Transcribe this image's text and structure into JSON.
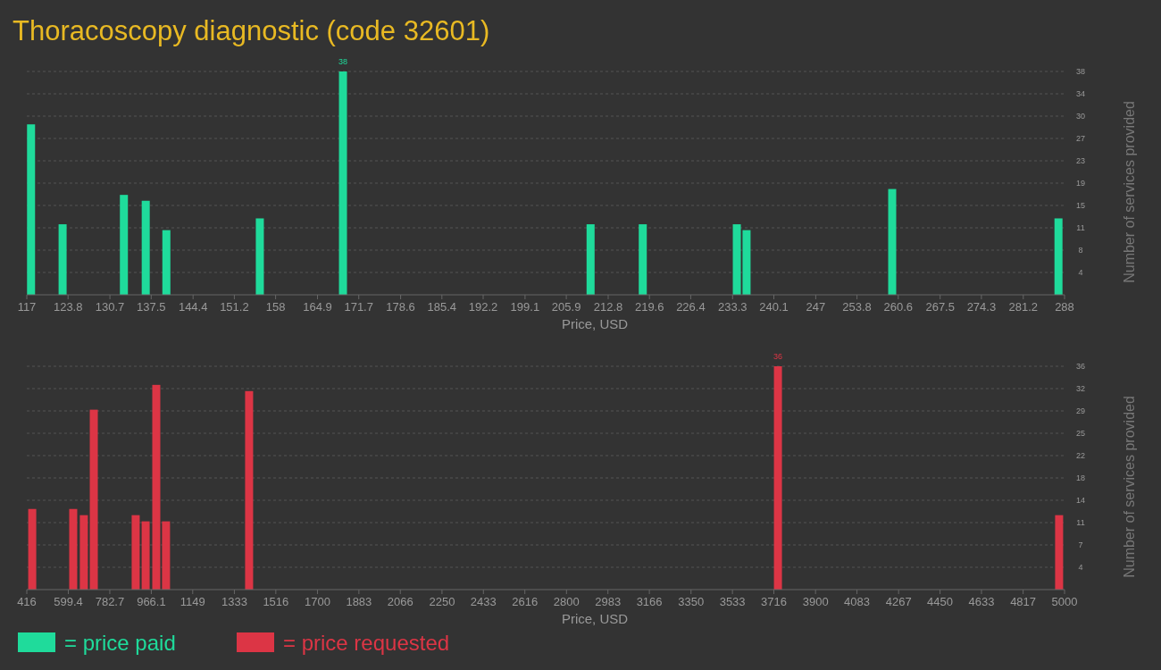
{
  "chart_data": [
    {
      "type": "bar",
      "title": "Thoracoscopy diagnostic (code 32601)",
      "xlabel": "Price, USD",
      "ylabel": "Number of services provided",
      "legend": "bottom left",
      "grid": "y",
      "xlim": [
        117,
        288
      ],
      "xticks": [
        117,
        123.8,
        130.7,
        137.5,
        144.4,
        151.2,
        158,
        164.9,
        171.7,
        178.6,
        185.4,
        192.2,
        199.1,
        205.9,
        212.8,
        219.6,
        226.4,
        233.3,
        240.1,
        247,
        253.8,
        260.6,
        267.5,
        274.3,
        281.2,
        288
      ],
      "ylim": [
        0,
        38
      ],
      "yticks": [
        {
          "value": 3.8,
          "label": "4"
        },
        {
          "value": 7.6,
          "label": "8"
        },
        {
          "value": 11.4,
          "label": "11"
        },
        {
          "value": 15.2,
          "label": "15"
        },
        {
          "value": 19,
          "label": "19"
        },
        {
          "value": 22.8,
          "label": "23"
        },
        {
          "value": 26.6,
          "label": "27"
        },
        {
          "value": 30.4,
          "label": "30"
        },
        {
          "value": 34.2,
          "label": "34"
        },
        {
          "value": 38,
          "label": "38"
        }
      ],
      "series": [
        {
          "name": "= price paid",
          "color": "#1fdb9b",
          "x": [
            117.7,
            122.9,
            133.0,
            136.6,
            140.0,
            155.4,
            169.1,
            209.9,
            218.5,
            234.0,
            235.6,
            259.6,
            287.0
          ],
          "values": [
            29,
            12,
            17,
            16,
            11,
            13,
            38,
            12,
            12,
            12,
            11,
            18,
            13
          ],
          "value_labels": [
            null,
            null,
            null,
            null,
            null,
            null,
            "38",
            null,
            null,
            null,
            null,
            null,
            null
          ]
        }
      ]
    },
    {
      "type": "bar",
      "xlabel": "Price, USD",
      "ylabel": "Number of services provided",
      "legend": "bottom left",
      "grid": "y",
      "xlim": [
        416,
        5000
      ],
      "xticks": [
        416,
        599.4,
        782.7,
        966.1,
        1149,
        1333,
        1516,
        1700,
        1883,
        2066,
        2250,
        2433,
        2616,
        2800,
        2983,
        3166,
        3350,
        3533,
        3716,
        3900,
        4083,
        4267,
        4450,
        4633,
        4817,
        5000
      ],
      "ylim": [
        0,
        36
      ],
      "yticks": [
        {
          "value": 3.6,
          "label": "4"
        },
        {
          "value": 7.2,
          "label": "7"
        },
        {
          "value": 10.8,
          "label": "11"
        },
        {
          "value": 14.4,
          "label": "14"
        },
        {
          "value": 18,
          "label": "18"
        },
        {
          "value": 21.6,
          "label": "22"
        },
        {
          "value": 25.2,
          "label": "25"
        },
        {
          "value": 28.8,
          "label": "29"
        },
        {
          "value": 32.4,
          "label": "32"
        },
        {
          "value": 36,
          "label": "36"
        }
      ],
      "series": [
        {
          "name": "= price requested",
          "color": "#dc3545",
          "x": [
            440,
            621,
            668,
            712,
            897,
            941,
            988,
            1031,
            1398,
            3734,
            4976
          ],
          "values": [
            13,
            13,
            12,
            29,
            12,
            11,
            33,
            11,
            32,
            36,
            12
          ],
          "value_labels": [
            null,
            null,
            null,
            null,
            null,
            null,
            null,
            null,
            null,
            "36",
            null
          ]
        }
      ]
    }
  ]
}
